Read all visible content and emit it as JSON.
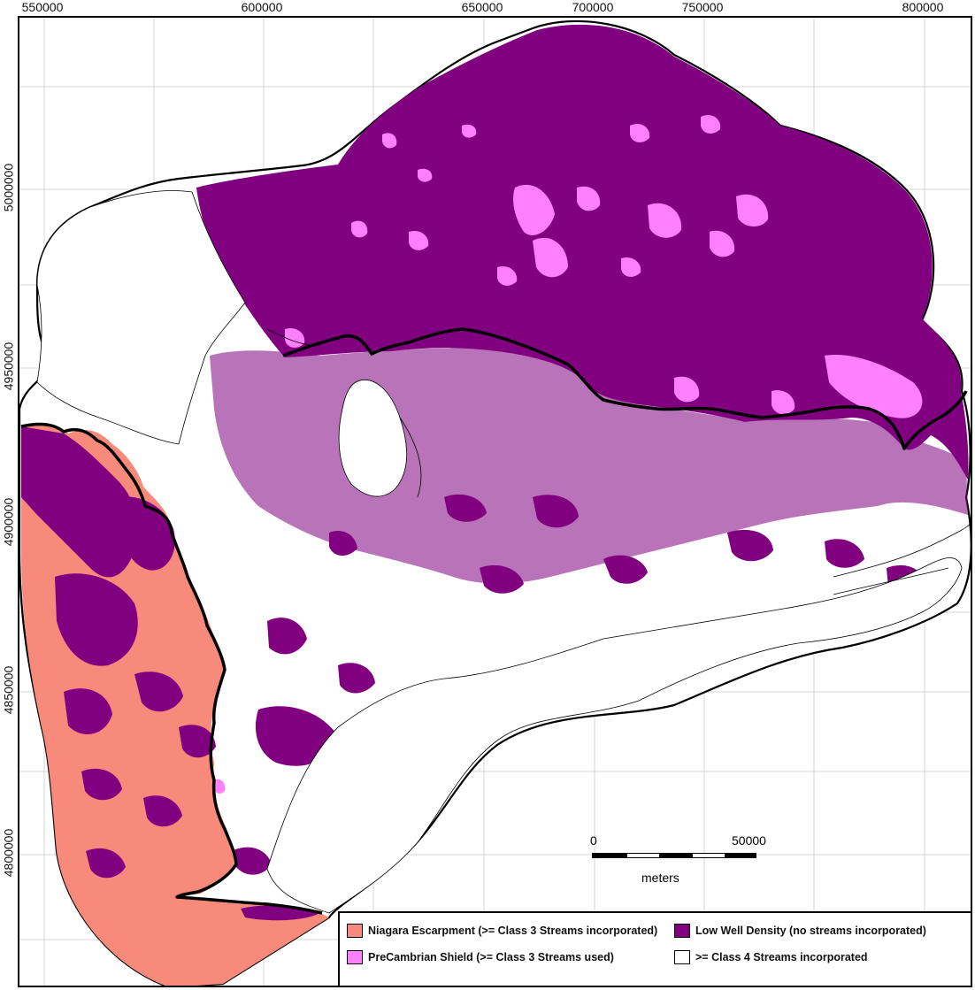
{
  "x_axis_ticks": [
    "550000",
    "600000",
    "650000",
    "700000",
    "750000",
    "800000"
  ],
  "y_axis_ticks": [
    "5000000",
    "4950000",
    "4900000",
    "4850000",
    "4800000"
  ],
  "scale_bar": {
    "start_label": "0",
    "end_label": "50000",
    "unit": "meters"
  },
  "legend": [
    {
      "label": "Niagara Escarpment (>= Class 3 Streams incorporated)",
      "color": "#f88a7c"
    },
    {
      "label": "Low Well Density (no streams incorporated)",
      "color": "#800080"
    },
    {
      "label": "PreCambrian Shield (>= Class 3 Streams used)",
      "color": "#ff80ff"
    },
    {
      "label": ">= Class 4 Streams incorporated",
      "color": "#ffffff"
    }
  ],
  "colors": {
    "niagara_escarpment": "#f88a7c",
    "low_well_density": "#800080",
    "precambrian_shield": "#ff80ff",
    "class4": "#ffffff",
    "grid": "#d4d4d4",
    "boundary": "#000000"
  }
}
